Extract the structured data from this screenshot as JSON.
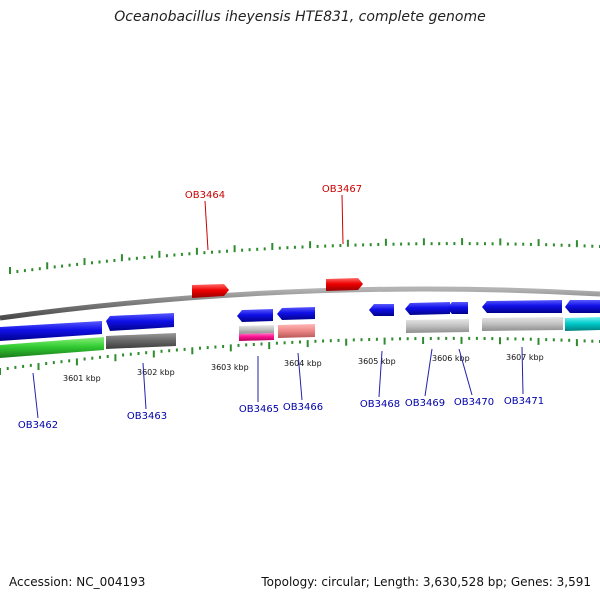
{
  "title": "Oceanobacillus iheyensis HTE831, complete genome",
  "footer": {
    "accession": "Accession: NC_004193",
    "summary": "Topology: circular; Length: 3,630,528 bp; Genes: 3,591"
  },
  "colors": {
    "backbone": "#808080",
    "tick_green": "#2e8b2e",
    "label_red": "#cc0000",
    "label_blue": "#0000aa",
    "label_line_red": "#cc0000",
    "label_line_blue": "#2222aa"
  },
  "scale": {
    "unit": "kbp",
    "labels": [
      "3601 kbp",
      "3602 kbp",
      "3603 kbp",
      "3604 kbp",
      "3605 kbp",
      "3606 kbp",
      "3607 kbp"
    ]
  },
  "features": [
    {
      "label": "OB3462",
      "strand": "reverse",
      "color": "blue",
      "row": "reverse-outer"
    },
    {
      "label": "OB3463",
      "strand": "reverse",
      "color": "blue",
      "row": "reverse-outer"
    },
    {
      "label": "OB3464",
      "strand": "forward",
      "color": "red",
      "row": "forward"
    },
    {
      "label": "OB3465",
      "strand": "reverse",
      "color": "blue",
      "row": "reverse-outer"
    },
    {
      "label": "OB3466",
      "strand": "reverse",
      "color": "blue",
      "row": "reverse-outer"
    },
    {
      "label": "OB3467",
      "strand": "forward",
      "color": "red",
      "row": "forward"
    },
    {
      "label": "OB3468",
      "strand": "reverse",
      "color": "blue",
      "row": "reverse-outer"
    },
    {
      "label": "OB3469",
      "strand": "reverse",
      "color": "blue",
      "row": "reverse-outer"
    },
    {
      "label": "OB3470",
      "strand": "reverse",
      "color": "blue",
      "row": "reverse-outer"
    },
    {
      "label": "OB3471",
      "strand": "reverse",
      "color": "blue",
      "row": "reverse-outer"
    }
  ],
  "category_colors": [
    "green",
    "dark-gray",
    "gray",
    "pink",
    "magenta",
    "light-gray",
    "cyan"
  ]
}
